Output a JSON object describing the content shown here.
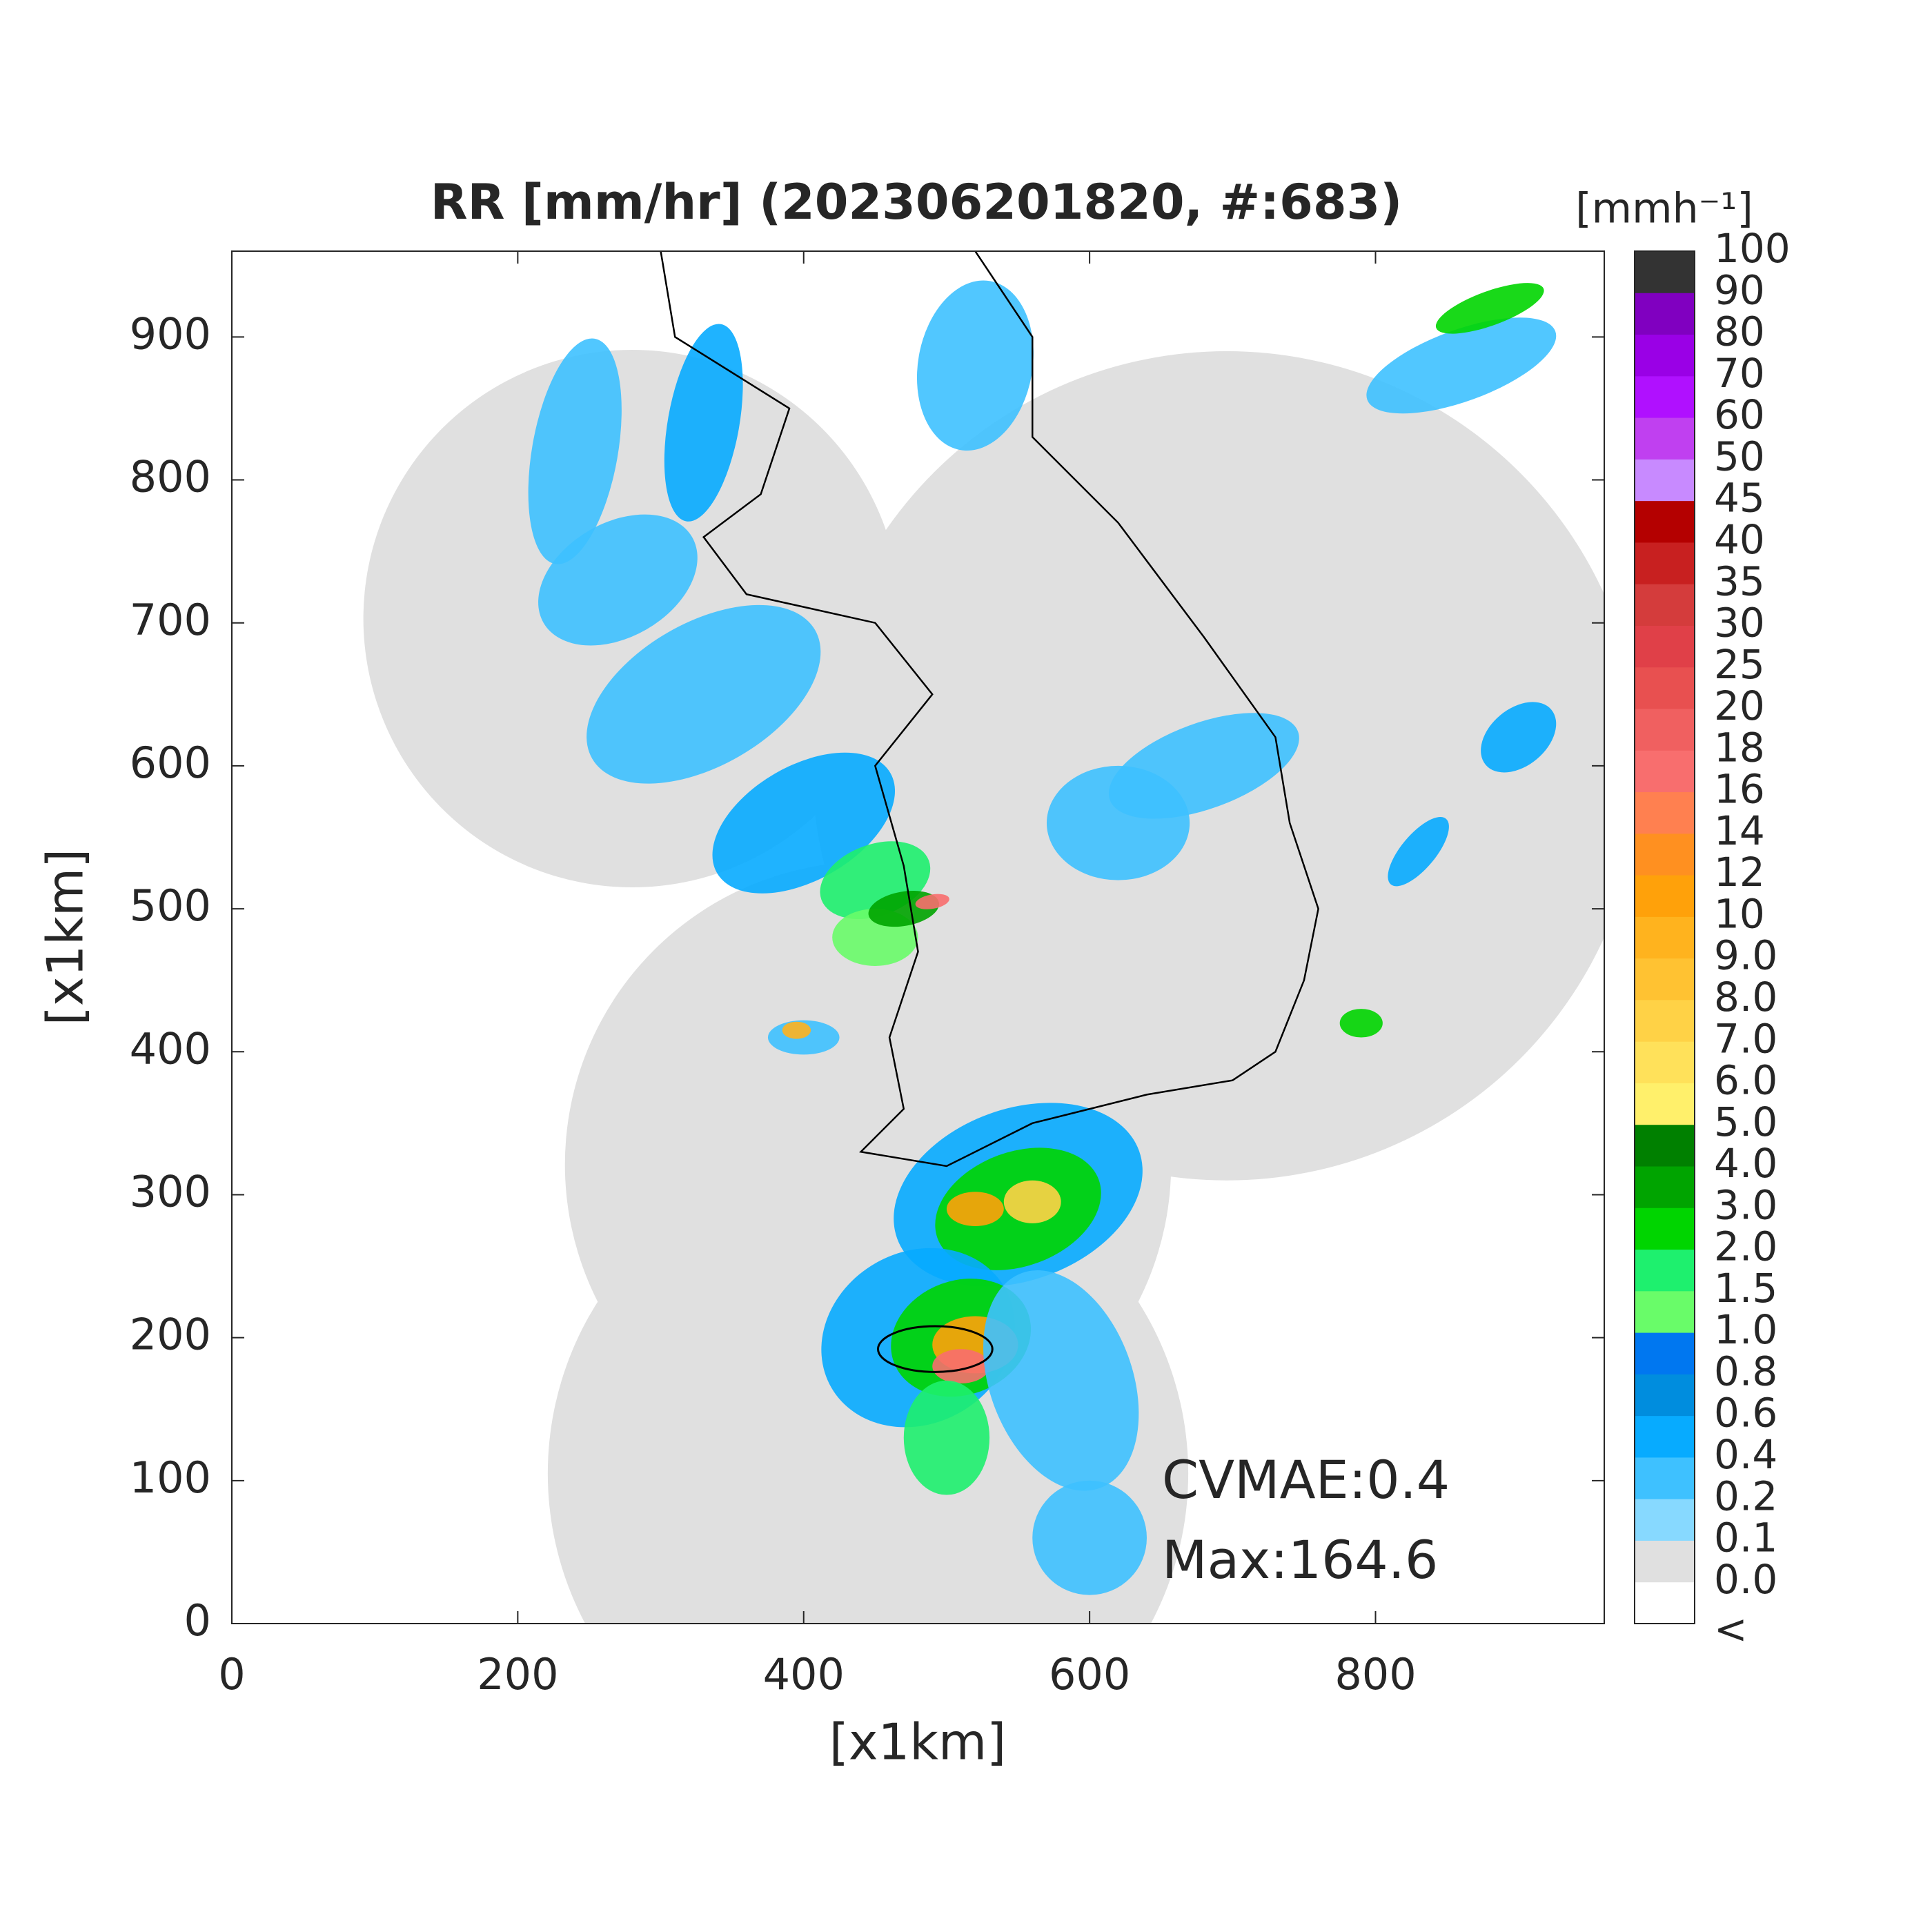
{
  "chart_data": {
    "type": "map",
    "title": "RR [mm/hr] (202306201820, #:683)",
    "xlabel": "[x1km]",
    "ylabel": "[x1km]",
    "xlim": [
      0,
      960
    ],
    "ylim": [
      0,
      960
    ],
    "xticks": [
      0,
      200,
      400,
      600,
      800
    ],
    "yticks": [
      0,
      100,
      200,
      300,
      400,
      500,
      600,
      700,
      800,
      900
    ],
    "grid": false,
    "annotations": [
      "CVMAE:0.4",
      "Max:164.6"
    ],
    "colorbar": {
      "title": "[mmh⁻¹]",
      "labels": [
        "<",
        "0.0",
        "0.1",
        "0.2",
        "0.4",
        "0.6",
        "0.8",
        "1.0",
        "1.5",
        "2.0",
        "3.0",
        "4.0",
        "5.0",
        "6.0",
        "7.0",
        "8.0",
        "9.0",
        "10",
        "12",
        "14",
        "16",
        "18",
        "20",
        "25",
        "30",
        "35",
        "40",
        "45",
        "50",
        "60",
        "70",
        "80",
        "90",
        "100"
      ],
      "colors": [
        "#ffffff",
        "#e0e0e0",
        "#87d9ff",
        "#3ec1ff",
        "#07abff",
        "#008dde",
        "#0077f0",
        "#69fc69",
        "#1ef06e",
        "#00d500",
        "#00a400",
        "#008000",
        "#fff06b",
        "#ffe15a",
        "#ffd246",
        "#ffc232",
        "#ffb31e",
        "#ffa10a",
        "#ff9020",
        "#ff8050",
        "#f86e6e",
        "#f06060",
        "#e85050",
        "#e04048",
        "#d43c3c",
        "#c82020",
        "#b40000",
        "#c88aff",
        "#c040f0",
        "#b010ff",
        "#9a00e6",
        "#8000c0",
        "#333333"
      ]
    }
  }
}
